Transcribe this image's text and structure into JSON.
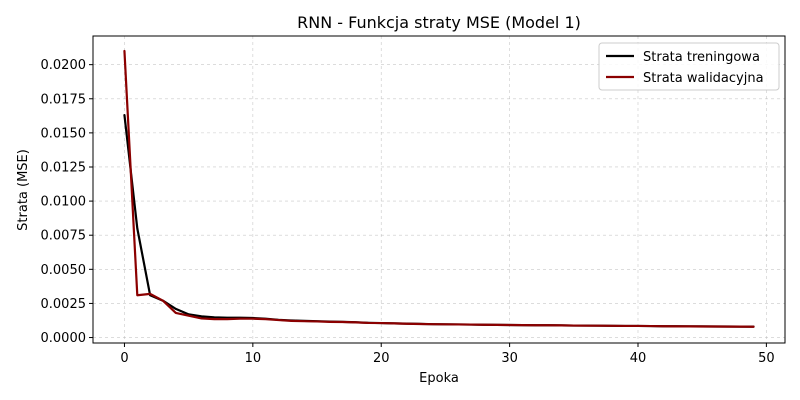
{
  "chart_data": {
    "type": "line",
    "title": "RNN - Funkcja straty MSE (Model 1)",
    "xlabel": "Epoka",
    "ylabel": "Strata (MSE)",
    "xlim": [
      -2.45,
      51.45
    ],
    "ylim": [
      -0.0004,
      0.0221
    ],
    "xticks": [
      0,
      10,
      20,
      30,
      40,
      50
    ],
    "yticks": [
      0.0,
      0.0025,
      0.005,
      0.0075,
      0.01,
      0.0125,
      0.015,
      0.0175,
      0.02
    ],
    "ytick_labels": [
      "0.0000",
      "0.0025",
      "0.0050",
      "0.0075",
      "0.0100",
      "0.0125",
      "0.0150",
      "0.0175",
      "0.0200"
    ],
    "grid": true,
    "legend_position": "top-right",
    "x": [
      0,
      1,
      2,
      3,
      4,
      5,
      6,
      7,
      8,
      9,
      10,
      11,
      12,
      13,
      14,
      15,
      16,
      17,
      18,
      19,
      20,
      21,
      22,
      23,
      24,
      25,
      26,
      27,
      28,
      29,
      30,
      31,
      32,
      33,
      34,
      35,
      36,
      37,
      38,
      39,
      40,
      41,
      42,
      43,
      44,
      45,
      46,
      47,
      48,
      49
    ],
    "series": [
      {
        "name": "Strata treningowa",
        "color": "#000000",
        "values": [
          0.0163,
          0.008,
          0.0031,
          0.0027,
          0.0021,
          0.0017,
          0.00155,
          0.00148,
          0.00145,
          0.00145,
          0.00143,
          0.00138,
          0.0013,
          0.00125,
          0.00122,
          0.0012,
          0.00117,
          0.00115,
          0.00112,
          0.00108,
          0.00106,
          0.00104,
          0.00102,
          0.001,
          0.00098,
          0.00097,
          0.00096,
          0.00095,
          0.00094,
          0.00093,
          0.00092,
          0.00091,
          0.0009,
          0.0009,
          0.00089,
          0.00088,
          0.00088,
          0.00087,
          0.00086,
          0.00085,
          0.00085,
          0.00084,
          0.00083,
          0.00083,
          0.00082,
          0.00082,
          0.00081,
          0.00081,
          0.0008,
          0.0008
        ]
      },
      {
        "name": "Strata walidacyjna",
        "color": "#8b0000",
        "values": [
          0.021,
          0.0031,
          0.0032,
          0.0027,
          0.0018,
          0.0016,
          0.0014,
          0.00135,
          0.00135,
          0.00138,
          0.00138,
          0.00135,
          0.00128,
          0.00122,
          0.0012,
          0.00118,
          0.00115,
          0.00114,
          0.00111,
          0.00107,
          0.00106,
          0.00104,
          0.00101,
          0.00099,
          0.00098,
          0.00097,
          0.00096,
          0.00095,
          0.00094,
          0.00093,
          0.00092,
          0.00091,
          0.0009,
          0.0009,
          0.00089,
          0.00088,
          0.00087,
          0.00087,
          0.00086,
          0.00085,
          0.00085,
          0.00084,
          0.00083,
          0.00082,
          0.00082,
          0.00081,
          0.00081,
          0.0008,
          0.0008,
          0.00079
        ]
      }
    ]
  }
}
